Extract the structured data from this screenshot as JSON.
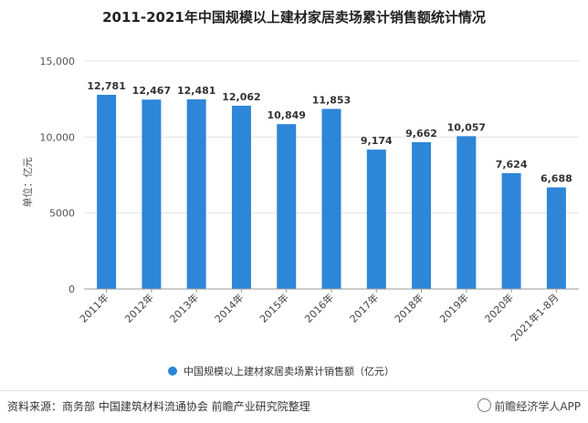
{
  "chart_data": {
    "type": "bar",
    "title": "2011-2021年中国规模以上建材家居卖场累计销售额统计情况",
    "ylabel": "单位：亿元",
    "xlabel": "",
    "categories": [
      "2011年",
      "2012年",
      "2013年",
      "2014年",
      "2015年",
      "2016年",
      "2017年",
      "2018年",
      "2019年",
      "2020年",
      "2021年1-8月"
    ],
    "series": [
      {
        "name": "中国规模以上建材家居卖场累计销售额（亿元）",
        "values": [
          12781,
          12467,
          12481,
          12062,
          10849,
          11853,
          9174,
          9662,
          10057,
          7624,
          6688
        ],
        "labels": [
          "12,781",
          "12,467",
          "12,481",
          "12,062",
          "10,849",
          "11,853",
          "9,174",
          "9,662",
          "10,057",
          "7,624",
          "6,688"
        ],
        "color": "#2e86d8"
      }
    ],
    "ylim": [
      0,
      15000
    ],
    "yticks": [
      0,
      5000,
      10000,
      15000
    ],
    "ytick_labels": [
      "0",
      "5000",
      "10,000",
      "15,000"
    ],
    "grid": true,
    "legend": "bottom"
  },
  "footer": {
    "source": "资料来源：商务部 中国建筑材料流通协会 前瞻产业研究院整理",
    "brand": "前瞻经济学人APP"
  }
}
